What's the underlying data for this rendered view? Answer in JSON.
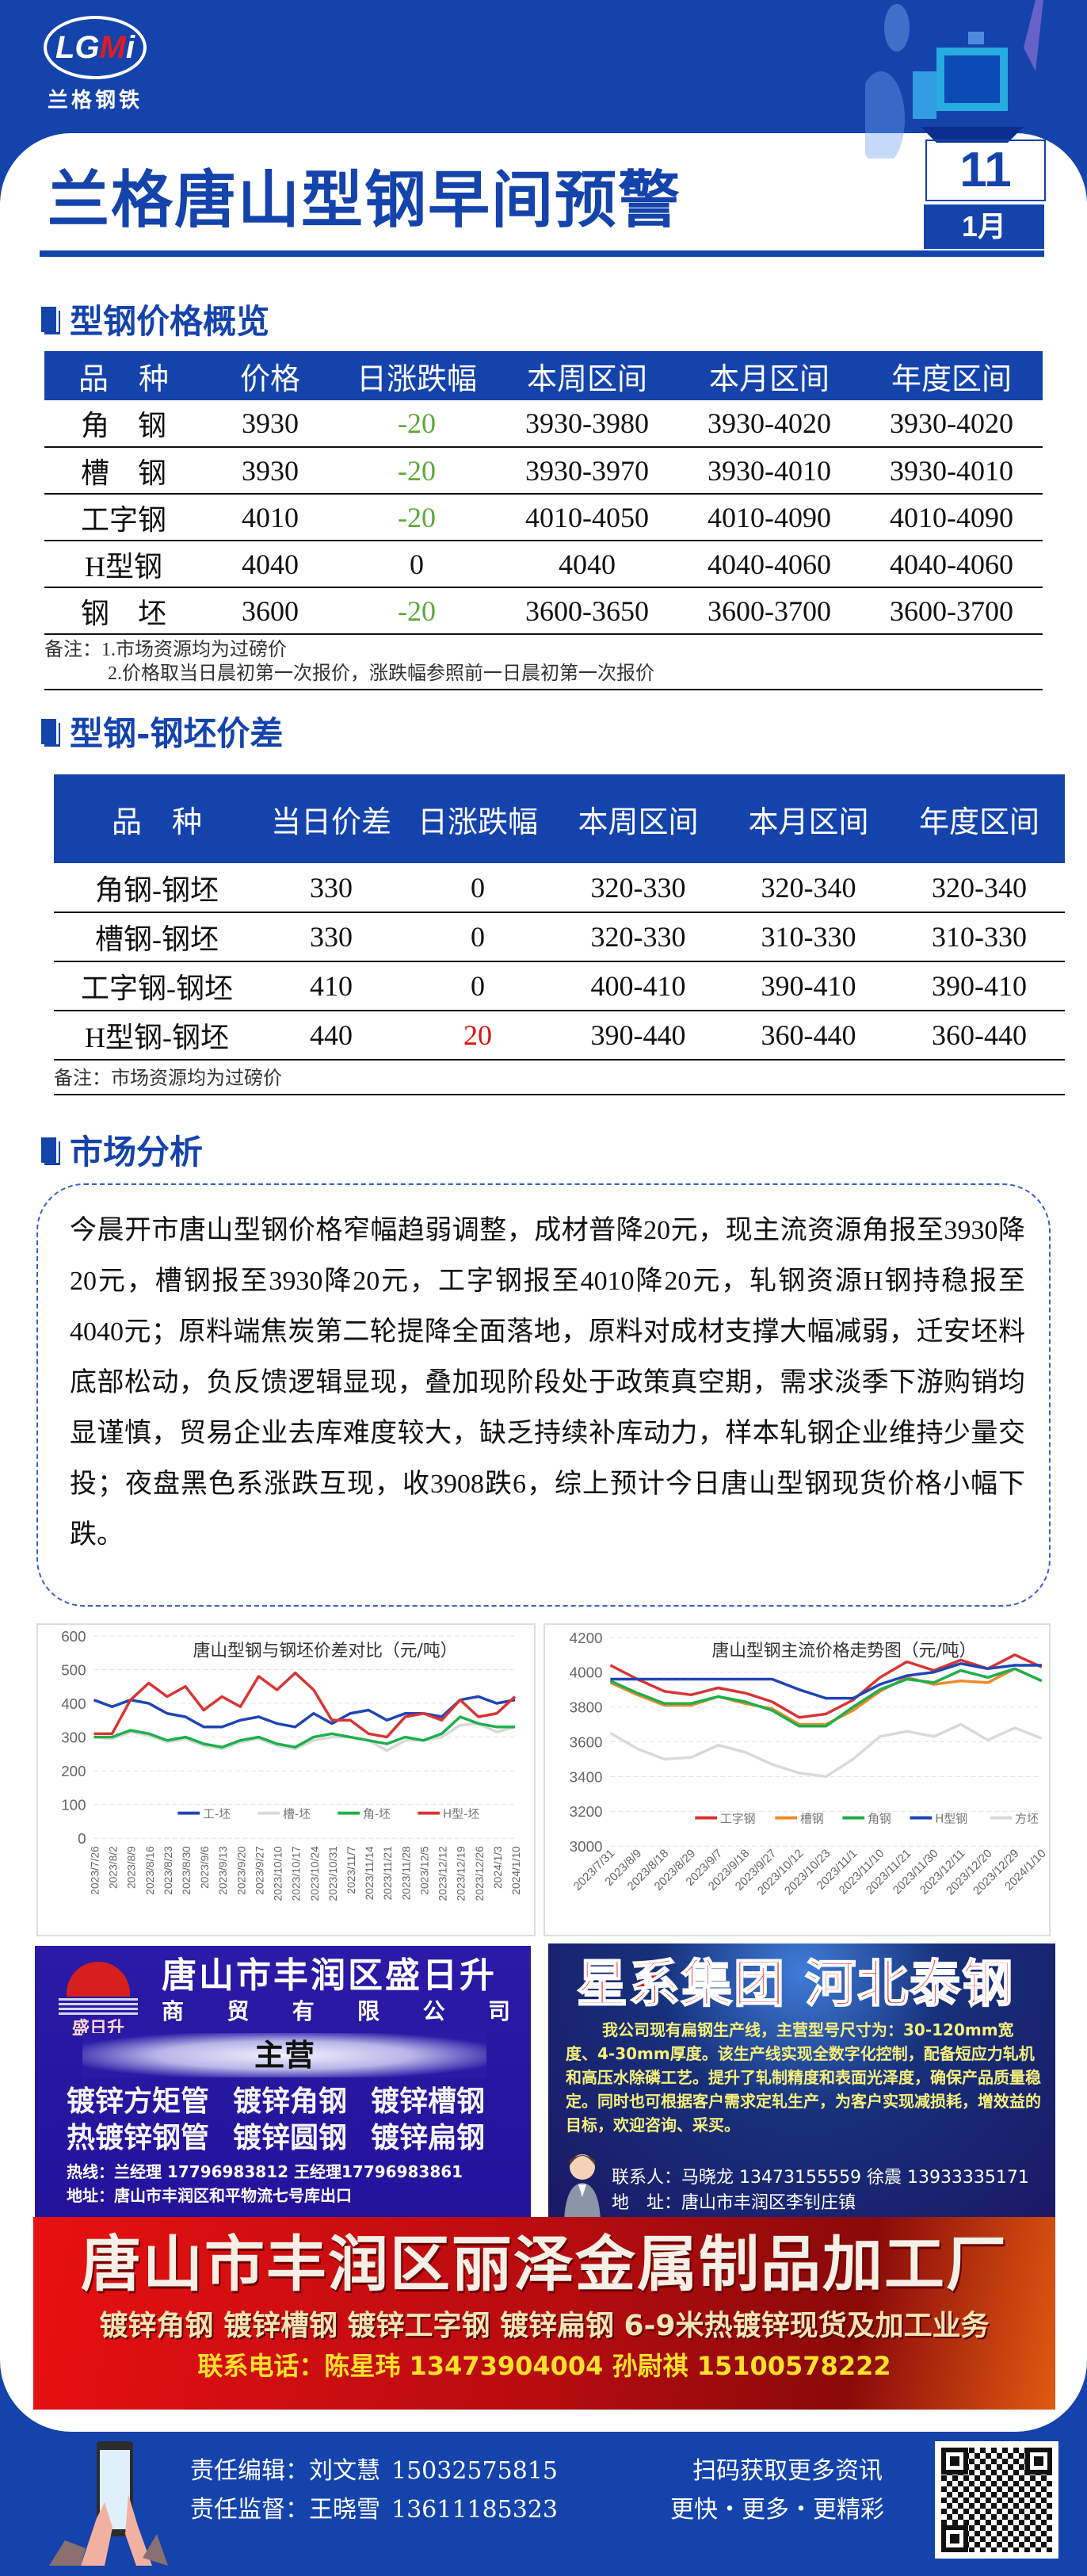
{
  "header": {
    "logo_text": "LGMi",
    "logo_cn": "兰格钢铁",
    "title": "兰格唐山型钢早间预警",
    "day": "11",
    "month": "1月"
  },
  "colors": {
    "brand_blue": "#1443ac",
    "down_green": "#5ea83a",
    "up_red": "#e01010"
  },
  "price_overview": {
    "heading": "型钢价格概览",
    "columns": [
      "品　种",
      "价格",
      "日涨跌幅",
      "本周区间",
      "本月区间",
      "年度区间"
    ],
    "rows": [
      {
        "name": "角　钢",
        "price": "3930",
        "change": "-20",
        "week": "3930-3980",
        "month": "3930-4020",
        "year": "3930-4020"
      },
      {
        "name": "槽　钢",
        "price": "3930",
        "change": "-20",
        "week": "3930-3970",
        "month": "3930-4010",
        "year": "3930-4010"
      },
      {
        "name": "工字钢",
        "price": "4010",
        "change": "-20",
        "week": "4010-4050",
        "month": "4010-4090",
        "year": "4010-4090"
      },
      {
        "name": "H型钢",
        "price": "4040",
        "change": "0",
        "week": "4040",
        "month": "4040-4060",
        "year": "4040-4060"
      },
      {
        "name": "钢　坯",
        "price": "3600",
        "change": "-20",
        "week": "3600-3650",
        "month": "3600-3700",
        "year": "3600-3700"
      }
    ],
    "note_1": "备注：1.市场资源均为过磅价",
    "note_2": "2.价格取当日晨初第一次报价，涨跌幅参照前一日晨初第一次报价"
  },
  "spread": {
    "heading": "型钢-钢坯价差",
    "columns": [
      "品　种",
      "当日价差",
      "日涨跌幅",
      "本周区间",
      "本月区间",
      "年度区间"
    ],
    "rows": [
      {
        "name": "角钢-钢坯",
        "spread": "330",
        "change": "0",
        "week": "320-330",
        "month": "320-340",
        "year": "320-340"
      },
      {
        "name": "槽钢-钢坯",
        "spread": "330",
        "change": "0",
        "week": "320-330",
        "month": "310-330",
        "year": "310-330"
      },
      {
        "name": "工字钢-钢坯",
        "spread": "410",
        "change": "0",
        "week": "400-410",
        "month": "390-410",
        "year": "390-410"
      },
      {
        "name": "H型钢-钢坯",
        "spread": "440",
        "change": "20",
        "week": "390-440",
        "month": "360-440",
        "year": "360-440"
      }
    ],
    "note": "备注：市场资源均为过磅价"
  },
  "analysis": {
    "heading": "市场分析",
    "text": "今晨开市唐山型钢价格窄幅趋弱调整，成材普降20元，现主流资源角报至3930降20元，槽钢报至3930降20元，工字钢报至4010降20元，轧钢资源H钢持稳报至4040元；原料端焦炭第二轮提降全面落地，原料对成材支撑大幅减弱，迁安坯料底部松动，负反馈逻辑显现，叠加现阶段处于政策真空期，需求淡季下游购销均显谨慎，贸易企业去库难度较大，缺乏持续补库动力，样本轧钢企业维持少量交投；夜盘黑色系涨跌互现，收3908跌6，综上预计今日唐山型钢现货价格小幅下跌。"
  },
  "chart_data": [
    {
      "type": "line",
      "title": "唐山型钢与钢坯价差对比（元/吨）",
      "ylim": [
        0,
        600
      ],
      "yticks": [
        "0",
        "100",
        "200",
        "300",
        "400",
        "500",
        "600"
      ],
      "grid": true,
      "legend": "bottom-inside",
      "x": [
        "2023/7/26",
        "2023/8/2",
        "2023/8/9",
        "2023/8/16",
        "2023/8/23",
        "2023/8/30",
        "2023/9/6",
        "2023/9/13",
        "2023/9/20",
        "2023/9/27",
        "2023/10/10",
        "2023/10/17",
        "2023/10/24",
        "2023/10/31",
        "2023/11/7",
        "2023/11/14",
        "2023/11/21",
        "2023/11/28",
        "2023/12/5",
        "2023/12/12",
        "2023/12/19",
        "2023/12/26",
        "2024/1/3",
        "2024/1/10"
      ],
      "series": [
        {
          "name": "工-坯",
          "color": "#1f45b5",
          "values": [
            410,
            390,
            410,
            400,
            370,
            360,
            330,
            330,
            350,
            360,
            340,
            330,
            370,
            340,
            370,
            380,
            350,
            370,
            370,
            360,
            410,
            420,
            400,
            410
          ]
        },
        {
          "name": "槽-坯",
          "color": "#d9d9d9",
          "values": [
            300,
            295,
            315,
            305,
            285,
            295,
            275,
            265,
            285,
            295,
            275,
            265,
            290,
            300,
            300,
            290,
            260,
            290,
            290,
            300,
            335,
            340,
            315,
            330
          ]
        },
        {
          "name": "角-坯",
          "color": "#1db04b",
          "values": [
            300,
            300,
            320,
            310,
            290,
            300,
            280,
            270,
            290,
            300,
            280,
            270,
            300,
            310,
            300,
            290,
            280,
            300,
            290,
            310,
            360,
            340,
            330,
            330
          ]
        },
        {
          "name": "H型-坯",
          "color": "#d93434",
          "values": [
            310,
            310,
            410,
            460,
            420,
            450,
            380,
            420,
            390,
            480,
            440,
            490,
            440,
            350,
            350,
            310,
            300,
            360,
            370,
            350,
            410,
            360,
            370,
            420
          ]
        }
      ]
    },
    {
      "type": "line",
      "title": "唐山型钢主流价格走势图（元/吨）",
      "ylim": [
        3000,
        4200
      ],
      "yticks": [
        "3000",
        "3200",
        "3400",
        "3600",
        "3800",
        "4000",
        "4200"
      ],
      "grid": true,
      "legend": "bottom-inside",
      "x": [
        "2023/7/31",
        "2023/8/9",
        "2023/8/18",
        "2023/8/29",
        "2023/9/7",
        "2023/9/18",
        "2023/9/27",
        "2023/10/12",
        "2023/10/23",
        "2023/11/1",
        "2023/11/10",
        "2023/11/21",
        "2023/11/30",
        "2023/12/11",
        "2023/12/20",
        "2023/12/29",
        "2024/1/10"
      ],
      "series": [
        {
          "name": "工字钢",
          "color": "#d93434",
          "values": [
            4040,
            3960,
            3890,
            3870,
            3910,
            3880,
            3830,
            3740,
            3760,
            3840,
            3970,
            4060,
            4010,
            4070,
            4020,
            4100,
            4030
          ]
        },
        {
          "name": "槽钢",
          "color": "#f0882a",
          "values": [
            3940,
            3870,
            3810,
            3810,
            3860,
            3820,
            3790,
            3700,
            3700,
            3780,
            3890,
            3970,
            3930,
            3950,
            3940,
            4020,
            3950
          ]
        },
        {
          "name": "角钢",
          "color": "#1db04b",
          "values": [
            3950,
            3880,
            3820,
            3820,
            3860,
            3830,
            3780,
            3690,
            3690,
            3800,
            3900,
            3960,
            3940,
            4010,
            3970,
            4020,
            3950
          ]
        },
        {
          "name": "H型钢",
          "color": "#1f45b5",
          "values": [
            3960,
            3960,
            3960,
            3960,
            3960,
            3960,
            3960,
            3900,
            3850,
            3850,
            3930,
            3980,
            4000,
            4050,
            4020,
            4040,
            4040
          ]
        },
        {
          "name": "方坯",
          "color": "#d9d9d9",
          "values": [
            3650,
            3560,
            3500,
            3510,
            3580,
            3540,
            3470,
            3420,
            3400,
            3500,
            3630,
            3660,
            3630,
            3700,
            3610,
            3680,
            3620
          ]
        }
      ]
    }
  ],
  "ads": {
    "ad1": {
      "logo_text": "盛日升",
      "name": "唐山市丰润区盛日升",
      "sub": [
        "商",
        "贸",
        "有",
        "限",
        "公",
        "司"
      ],
      "main_label": "主营",
      "products_row1": [
        "镀锌方矩管",
        "镀锌角钢",
        "镀锌槽钢"
      ],
      "products_row2": [
        "热镀锌钢管",
        "镀锌圆钢",
        "镀锌扁钢"
      ],
      "hotline": "热线：兰经理 17796983812  王经理17796983861",
      "address": "地址：唐山市丰润区和平物流七号库出口"
    },
    "ad2": {
      "headline": "星系集团 河北泰钢",
      "body": "我公司现有扁钢生产线，主营型号尺寸为：30-120mm宽度、4-30mm厚度。该生产线实现全数字化控制，配备短应力轧机和高压水除磷工艺。提升了轧制精度和表面光泽度，确保产品质量稳定。同时也可根据客户需求定轧生产，为客户实现减损耗，增效益的目标，欢迎咨询、采买。",
      "contact": "联系人：马晓龙 13473155559  徐震 13933335171",
      "address": "地　址：唐山市丰润区李钊庄镇"
    },
    "ad3": {
      "headline": "唐山市丰润区丽泽金属制品加工厂",
      "products": "镀锌角钢  镀锌槽钢  镀锌工字钢  镀锌扁钢  6-9米热镀锌现货及加工业务",
      "contact": "联系电话：陈星玮 13473904004  孙尉祺 15100578222"
    }
  },
  "footer": {
    "editor_label": "责任编辑：刘文慧",
    "editor_phone": "15032575815",
    "supervisor_label": "责任监督：王晓雪",
    "supervisor_phone": "13611185323",
    "scan_text": "扫码获取更多资讯",
    "slogan": "更快・更多・更精彩"
  }
}
